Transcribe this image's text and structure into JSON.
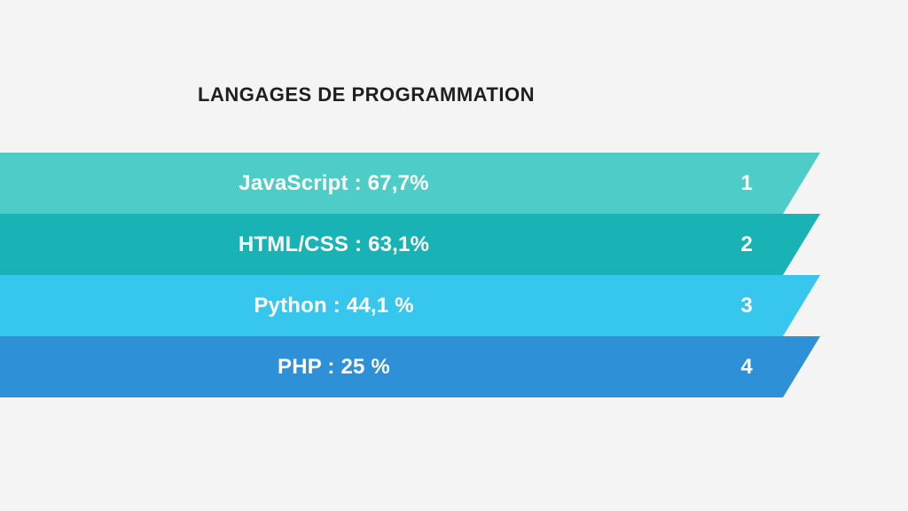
{
  "title": "LANGAGES DE PROGRAMMATION",
  "bands": [
    {
      "label": "JavaScript : 67,7%",
      "rank": "1",
      "color": "#4ecdc8"
    },
    {
      "label": "HTML/CSS : 63,1%",
      "rank": "2",
      "color": "#1ab3b5"
    },
    {
      "label": "Python : 44,1 %",
      "rank": "3",
      "color": "#37c6ee"
    },
    {
      "label": "PHP : 25 %",
      "rank": "4",
      "color": "#2e90d6"
    }
  ]
}
